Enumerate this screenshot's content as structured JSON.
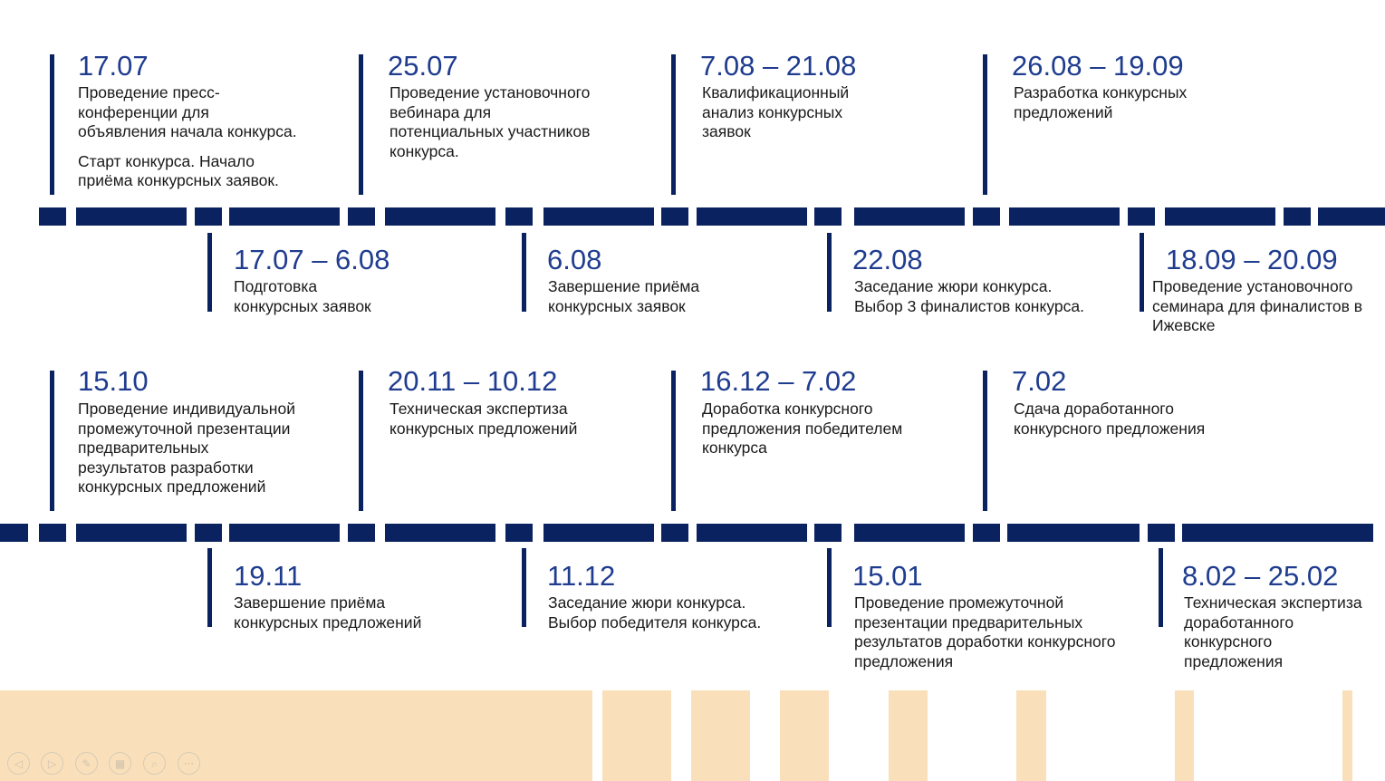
{
  "events": [
    {
      "date": "17.07",
      "text": "Проведение пресс-\nконференции для\nобъявления начала конкурса.",
      "text2": "Старт конкурса. Начало\nприёма конкурсных заявок."
    },
    {
      "date": "25.07",
      "text": "Проведение установочного\nвебинара для\nпотенциальных участников\nконкурса."
    },
    {
      "date": "7.08 – 21.08",
      "text": "Квалификационный\nанализ конкурсных\nзаявок"
    },
    {
      "date": "26.08 – 19.09",
      "text": "Разработка конкурсных\nпредложений"
    },
    {
      "date": "17.07 – 6.08",
      "text": "Подготовка\nконкурсных заявок"
    },
    {
      "date": "6.08",
      "text": "Завершение приёма\nконкурсных заявок"
    },
    {
      "date": "22.08",
      "text": "Заседание жюри конкурса.\nВыбор 3 финалистов конкурса."
    },
    {
      "date": "18.09 – 20.09",
      "text": "Проведение установочного\nсеминара для финалистов в\nИжевске"
    },
    {
      "date": "15.10",
      "text": "Проведение индивидуальной\nпромежуточной презентации\nпредварительных\nрезультатов разработки\nконкурсных предложений"
    },
    {
      "date": "20.11 – 10.12",
      "text": "Техническая экспертиза\nконкурсных предложений"
    },
    {
      "date": "16.12 – 7.02",
      "text": "Доработка конкурсного\nпредложения победителем\nконкурса"
    },
    {
      "date": "7.02",
      "text": "Сдача доработанного\nконкурсного предложения"
    },
    {
      "date": "19.11",
      "text": "Завершение приёма\nконкурсных предложений"
    },
    {
      "date": "11.12",
      "text": "Заседание жюри конкурса.\nВыбор победителя конкурса."
    },
    {
      "date": "15.01",
      "text": "Проведение промежуточной\nпрезентации предварительных\nрезультатов доработки конкурсного\nпредложения"
    },
    {
      "date": "8.02 – 25.02",
      "text": "Техническая экспертиза\nдоработанного\nконкурсного\nпредложения"
    }
  ],
  "controls": [
    {
      "name": "previous-slide",
      "glyph": "◁"
    },
    {
      "name": "next-slide",
      "glyph": "▷"
    },
    {
      "name": "pen",
      "glyph": "✎"
    },
    {
      "name": "slide-sorter",
      "glyph": "▦"
    },
    {
      "name": "zoom",
      "glyph": "⌕"
    },
    {
      "name": "more-options",
      "glyph": "···"
    }
  ],
  "colors": {
    "line": "#0b2260",
    "date": "#1f3c8f",
    "deco": "#f9e0bb"
  }
}
